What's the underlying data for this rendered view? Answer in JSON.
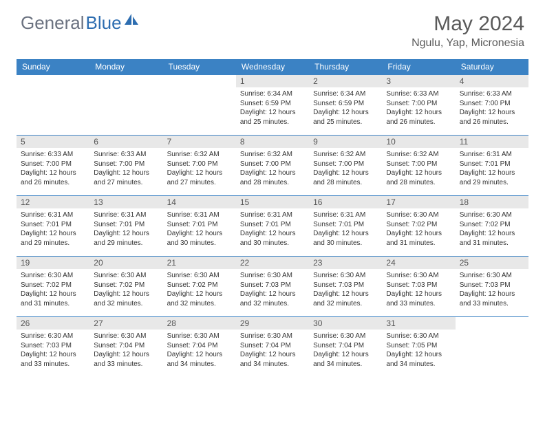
{
  "logo": {
    "text1": "General",
    "text2": "Blue",
    "text_color": "#6b7280",
    "accent_color": "#2d6db0"
  },
  "header": {
    "title": "May 2024",
    "location": "Ngulu, Yap, Micronesia"
  },
  "style": {
    "header_bg": "#3b82c4",
    "header_text": "#ffffff",
    "daynum_bg": "#e8e8e8",
    "border_color": "#3b82c4",
    "title_fontsize": 30,
    "location_fontsize": 16,
    "th_fontsize": 12,
    "body_fontsize": 10
  },
  "weekdays": [
    "Sunday",
    "Monday",
    "Tuesday",
    "Wednesday",
    "Thursday",
    "Friday",
    "Saturday"
  ],
  "weeks": [
    [
      null,
      null,
      null,
      {
        "d": "1",
        "sr": "6:34 AM",
        "ss": "6:59 PM",
        "dl": "12 hours and 25 minutes."
      },
      {
        "d": "2",
        "sr": "6:34 AM",
        "ss": "6:59 PM",
        "dl": "12 hours and 25 minutes."
      },
      {
        "d": "3",
        "sr": "6:33 AM",
        "ss": "7:00 PM",
        "dl": "12 hours and 26 minutes."
      },
      {
        "d": "4",
        "sr": "6:33 AM",
        "ss": "7:00 PM",
        "dl": "12 hours and 26 minutes."
      }
    ],
    [
      {
        "d": "5",
        "sr": "6:33 AM",
        "ss": "7:00 PM",
        "dl": "12 hours and 26 minutes."
      },
      {
        "d": "6",
        "sr": "6:33 AM",
        "ss": "7:00 PM",
        "dl": "12 hours and 27 minutes."
      },
      {
        "d": "7",
        "sr": "6:32 AM",
        "ss": "7:00 PM",
        "dl": "12 hours and 27 minutes."
      },
      {
        "d": "8",
        "sr": "6:32 AM",
        "ss": "7:00 PM",
        "dl": "12 hours and 28 minutes."
      },
      {
        "d": "9",
        "sr": "6:32 AM",
        "ss": "7:00 PM",
        "dl": "12 hours and 28 minutes."
      },
      {
        "d": "10",
        "sr": "6:32 AM",
        "ss": "7:00 PM",
        "dl": "12 hours and 28 minutes."
      },
      {
        "d": "11",
        "sr": "6:31 AM",
        "ss": "7:01 PM",
        "dl": "12 hours and 29 minutes."
      }
    ],
    [
      {
        "d": "12",
        "sr": "6:31 AM",
        "ss": "7:01 PM",
        "dl": "12 hours and 29 minutes."
      },
      {
        "d": "13",
        "sr": "6:31 AM",
        "ss": "7:01 PM",
        "dl": "12 hours and 29 minutes."
      },
      {
        "d": "14",
        "sr": "6:31 AM",
        "ss": "7:01 PM",
        "dl": "12 hours and 30 minutes."
      },
      {
        "d": "15",
        "sr": "6:31 AM",
        "ss": "7:01 PM",
        "dl": "12 hours and 30 minutes."
      },
      {
        "d": "16",
        "sr": "6:31 AM",
        "ss": "7:01 PM",
        "dl": "12 hours and 30 minutes."
      },
      {
        "d": "17",
        "sr": "6:30 AM",
        "ss": "7:02 PM",
        "dl": "12 hours and 31 minutes."
      },
      {
        "d": "18",
        "sr": "6:30 AM",
        "ss": "7:02 PM",
        "dl": "12 hours and 31 minutes."
      }
    ],
    [
      {
        "d": "19",
        "sr": "6:30 AM",
        "ss": "7:02 PM",
        "dl": "12 hours and 31 minutes."
      },
      {
        "d": "20",
        "sr": "6:30 AM",
        "ss": "7:02 PM",
        "dl": "12 hours and 32 minutes."
      },
      {
        "d": "21",
        "sr": "6:30 AM",
        "ss": "7:02 PM",
        "dl": "12 hours and 32 minutes."
      },
      {
        "d": "22",
        "sr": "6:30 AM",
        "ss": "7:03 PM",
        "dl": "12 hours and 32 minutes."
      },
      {
        "d": "23",
        "sr": "6:30 AM",
        "ss": "7:03 PM",
        "dl": "12 hours and 32 minutes."
      },
      {
        "d": "24",
        "sr": "6:30 AM",
        "ss": "7:03 PM",
        "dl": "12 hours and 33 minutes."
      },
      {
        "d": "25",
        "sr": "6:30 AM",
        "ss": "7:03 PM",
        "dl": "12 hours and 33 minutes."
      }
    ],
    [
      {
        "d": "26",
        "sr": "6:30 AM",
        "ss": "7:03 PM",
        "dl": "12 hours and 33 minutes."
      },
      {
        "d": "27",
        "sr": "6:30 AM",
        "ss": "7:04 PM",
        "dl": "12 hours and 33 minutes."
      },
      {
        "d": "28",
        "sr": "6:30 AM",
        "ss": "7:04 PM",
        "dl": "12 hours and 34 minutes."
      },
      {
        "d": "29",
        "sr": "6:30 AM",
        "ss": "7:04 PM",
        "dl": "12 hours and 34 minutes."
      },
      {
        "d": "30",
        "sr": "6:30 AM",
        "ss": "7:04 PM",
        "dl": "12 hours and 34 minutes."
      },
      {
        "d": "31",
        "sr": "6:30 AM",
        "ss": "7:05 PM",
        "dl": "12 hours and 34 minutes."
      },
      null
    ]
  ],
  "labels": {
    "sunrise": "Sunrise:",
    "sunset": "Sunset:",
    "daylight": "Daylight:"
  }
}
